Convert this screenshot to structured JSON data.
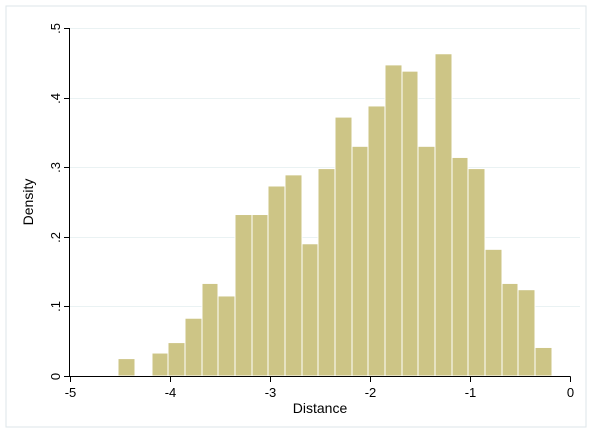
{
  "chart_data": {
    "type": "bar",
    "title": "",
    "xlabel": "Distance",
    "ylabel": "Density",
    "xlim": [
      -5,
      0
    ],
    "ylim": [
      0,
      0.5
    ],
    "x_ticks": [
      -5,
      -4,
      -3,
      -2,
      -1,
      0
    ],
    "x_tick_labels": [
      "-5",
      "-4",
      "-3",
      "-2",
      "-1",
      "0"
    ],
    "y_ticks": [
      0,
      0.1,
      0.2,
      0.3,
      0.4,
      0.5
    ],
    "y_tick_labels": [
      "0",
      ".1",
      ".2",
      ".3",
      ".4",
      ".5"
    ],
    "grid": true,
    "legend": "none",
    "colors": {
      "bar_fill": "#cdc586",
      "bar_edge": "#ffffff",
      "grid": "#eaf2f3",
      "axis": "#000000",
      "frame_outer": "#dde6e8",
      "background": "#ffffff"
    },
    "bins": [
      {
        "x0": -4.52,
        "x1": -4.35,
        "y": 0.025
      },
      {
        "x0": -4.18,
        "x1": -4.02,
        "y": 0.033
      },
      {
        "x0": -4.02,
        "x1": -3.85,
        "y": 0.048
      },
      {
        "x0": -3.85,
        "x1": -3.68,
        "y": 0.083
      },
      {
        "x0": -3.68,
        "x1": -3.52,
        "y": 0.133
      },
      {
        "x0": -3.52,
        "x1": -3.35,
        "y": 0.115
      },
      {
        "x0": -3.35,
        "x1": -3.18,
        "y": 0.232
      },
      {
        "x0": -3.18,
        "x1": -3.02,
        "y": 0.232
      },
      {
        "x0": -3.02,
        "x1": -2.85,
        "y": 0.273
      },
      {
        "x0": -2.85,
        "x1": -2.68,
        "y": 0.289
      },
      {
        "x0": -2.68,
        "x1": -2.52,
        "y": 0.19
      },
      {
        "x0": -2.52,
        "x1": -2.35,
        "y": 0.298
      },
      {
        "x0": -2.35,
        "x1": -2.18,
        "y": 0.372
      },
      {
        "x0": -2.18,
        "x1": -2.02,
        "y": 0.33
      },
      {
        "x0": -2.02,
        "x1": -1.85,
        "y": 0.388
      },
      {
        "x0": -1.85,
        "x1": -1.68,
        "y": 0.447
      },
      {
        "x0": -1.68,
        "x1": -1.52,
        "y": 0.438
      },
      {
        "x0": -1.52,
        "x1": -1.35,
        "y": 0.33
      },
      {
        "x0": -1.35,
        "x1": -1.18,
        "y": 0.463
      },
      {
        "x0": -1.18,
        "x1": -1.02,
        "y": 0.314
      },
      {
        "x0": -1.02,
        "x1": -0.85,
        "y": 0.298
      },
      {
        "x0": -0.85,
        "x1": -0.68,
        "y": 0.182
      },
      {
        "x0": -0.68,
        "x1": -0.52,
        "y": 0.133
      },
      {
        "x0": -0.52,
        "x1": -0.35,
        "y": 0.124
      },
      {
        "x0": -0.35,
        "x1": -0.18,
        "y": 0.041
      }
    ]
  }
}
